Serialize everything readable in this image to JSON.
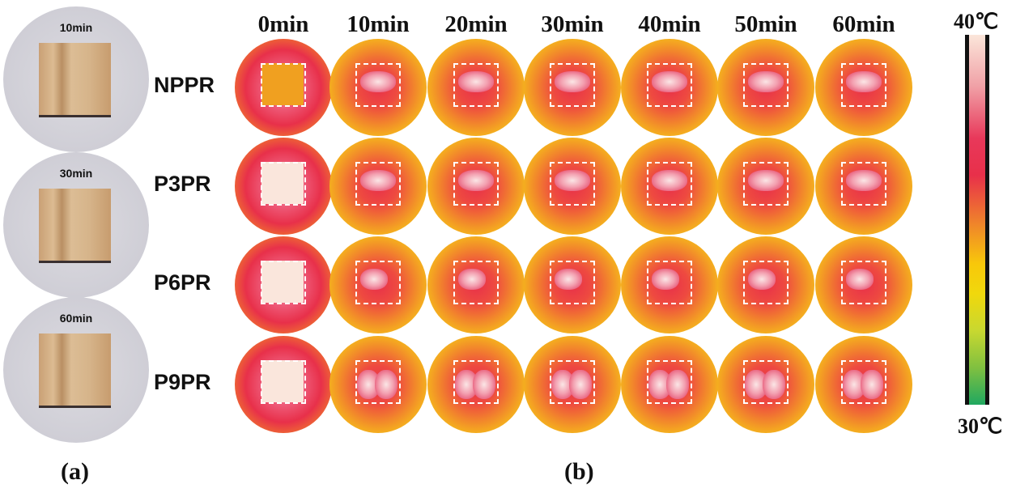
{
  "panel_a": {
    "label": "(a)",
    "photos": [
      {
        "time": "10min"
      },
      {
        "time": "30min"
      },
      {
        "time": "60min"
      }
    ]
  },
  "panel_b": {
    "label": "(b)",
    "columns": [
      "0min",
      "10min",
      "20min",
      "30min",
      "40min",
      "50min",
      "60min"
    ],
    "rows": [
      "NPPR",
      "P3PR",
      "P6PR",
      "P9PR"
    ]
  },
  "colorbar": {
    "max_label": "40℃",
    "min_label": "30℃",
    "colors": [
      "#fbe6da",
      "#e8304a",
      "#f08a28",
      "#f8c80a",
      "#20a860"
    ]
  }
}
